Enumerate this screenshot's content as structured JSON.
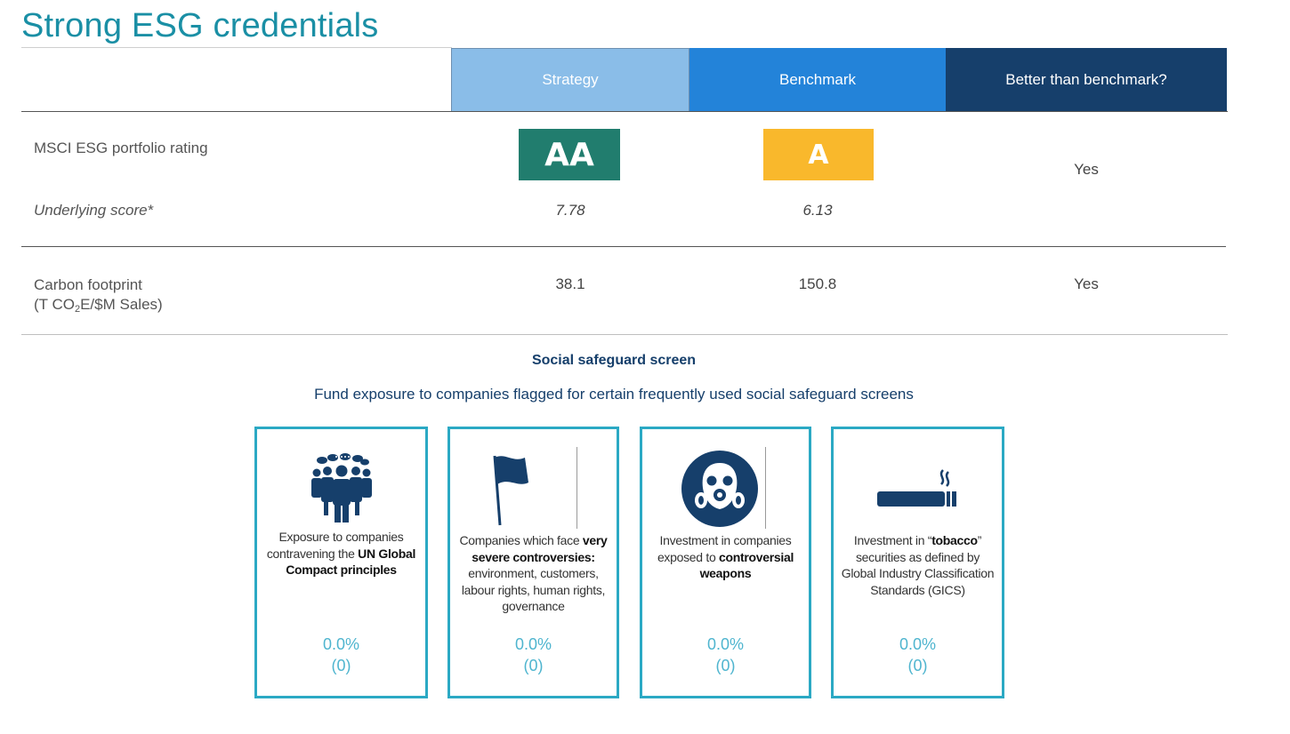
{
  "page": {
    "title": "Strong ESG credentials"
  },
  "table": {
    "headers": {
      "strategy": "Strategy",
      "benchmark": "Benchmark",
      "better": "Better than benchmark?"
    },
    "msci": {
      "label": "MSCI ESG portfolio rating",
      "strategy_rating": "AA",
      "benchmark_rating": "A",
      "better": "Yes",
      "underlying_label": "Underlying score*",
      "strategy_score": "7.78",
      "benchmark_score": "6.13"
    },
    "carbon": {
      "label_line1": "Carbon footprint",
      "label_unit_prefix": "(T CO",
      "label_unit_sub": "2",
      "label_unit_suffix": "E/$M Sales)",
      "strategy": "38.1",
      "benchmark": "150.8",
      "better": "Yes"
    }
  },
  "colors": {
    "title": "#1a8fa5",
    "strategy_header": "#8abde8",
    "benchmark_header": "#2383d9",
    "better_header": "#163f6b",
    "rating_aa": "#217d6e",
    "rating_a": "#f9b82c",
    "card_border": "#2ba9c4"
  },
  "safeguard": {
    "title": "Social safeguard screen",
    "subtitle": "Fund exposure to companies flagged for certain frequently used social safeguard screens",
    "cards": [
      {
        "icon": "people-group-icon",
        "desc_pre": "Exposure to companies contravening the ",
        "desc_bold": "UN Global Compact principles",
        "desc_post": "",
        "pct": "0.0%",
        "count": "(0)"
      },
      {
        "icon": "flag-icon",
        "desc_pre": "Companies which face ",
        "desc_bold": "very severe controversies:",
        "desc_post": " environment, customers, labour rights, human rights, governance",
        "pct": "0.0%",
        "count": "(0)"
      },
      {
        "icon": "gas-mask-icon",
        "desc_pre": "Investment in companies exposed to ",
        "desc_bold": "controversial weapons",
        "desc_post": "",
        "pct": "0.0%",
        "count": "(0)"
      },
      {
        "icon": "cigarette-icon",
        "desc_pre": "Investment in “",
        "desc_bold": "tobacco",
        "desc_post": "” securities as defined by Global Industry Classification Standards (GICS)",
        "pct": "0.0%",
        "count": "(0)"
      }
    ]
  }
}
